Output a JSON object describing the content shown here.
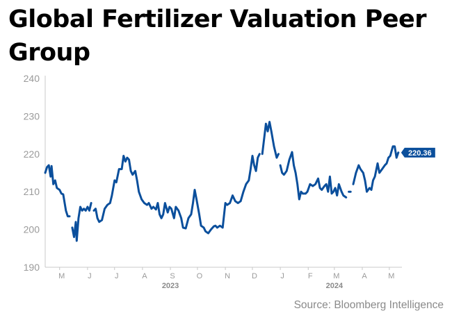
{
  "title": "Global Fertilizer Valuation Peer Group",
  "source": "Source: Bloomberg Intelligence",
  "colors": {
    "line": "#0b4f9c",
    "label_bg": "#0b4f9c",
    "axis_text": "#9a9a9a",
    "year_text": "#8a8a8a",
    "axis_line": "#c8c8c8"
  },
  "chart_data": {
    "type": "line",
    "title": "Global Fertilizer Valuation Peer Group",
    "xlabel": "",
    "ylabel": "",
    "ylim": [
      190,
      240
    ],
    "yticks": [
      190,
      200,
      210,
      220,
      230,
      240
    ],
    "grid": false,
    "x_ticks": [
      {
        "label": "M",
        "date": "2023-05-01"
      },
      {
        "label": "J",
        "date": "2023-06-01"
      },
      {
        "label": "J",
        "date": "2023-07-01"
      },
      {
        "label": "A",
        "date": "2023-08-01"
      },
      {
        "label": "S",
        "date": "2023-09-01"
      },
      {
        "label": "O",
        "date": "2023-10-01"
      },
      {
        "label": "N",
        "date": "2023-11-01"
      },
      {
        "label": "D",
        "date": "2023-12-01"
      },
      {
        "label": "J",
        "date": "2024-01-01"
      },
      {
        "label": "F",
        "date": "2024-02-01"
      },
      {
        "label": "M",
        "date": "2024-03-01"
      },
      {
        "label": "A",
        "date": "2024-04-01"
      },
      {
        "label": "M",
        "date": "2024-05-01"
      }
    ],
    "year_labels": [
      {
        "label": "2023",
        "date": "2023-09-01"
      },
      {
        "label": "2024",
        "date": "2024-03-01"
      }
    ],
    "last_value_label": "220.36",
    "series": [
      {
        "segments": [
          [
            [
              "2023-04-15",
              215
            ],
            [
              "2023-04-17",
              216.5
            ],
            [
              "2023-04-19",
              217
            ],
            [
              "2023-04-21",
              214
            ],
            [
              "2023-04-22",
              216.8
            ],
            [
              "2023-04-24",
              212
            ],
            [
              "2023-04-26",
              213
            ],
            [
              "2023-04-28",
              211
            ],
            [
              "2023-05-01",
              210.5
            ],
            [
              "2023-05-03",
              209.5
            ],
            [
              "2023-05-05",
              209.3
            ],
            [
              "2023-05-08",
              205
            ],
            [
              "2023-05-10",
              203.5
            ],
            [
              "2023-05-12",
              203.5
            ]
          ],
          [
            [
              "2023-05-15",
              200.5
            ],
            [
              "2023-05-17",
              198
            ],
            [
              "2023-05-19",
              202
            ],
            [
              "2023-05-20",
              197
            ],
            [
              "2023-05-22",
              203
            ],
            [
              "2023-05-24",
              206
            ],
            [
              "2023-05-26",
              205
            ],
            [
              "2023-05-28",
              205.5
            ],
            [
              "2023-05-30",
              205
            ],
            [
              "2023-06-01",
              206
            ],
            [
              "2023-06-03",
              205
            ],
            [
              "2023-06-05",
              207
            ]
          ],
          [
            [
              "2023-06-08",
              205
            ],
            [
              "2023-06-10",
              205.5
            ],
            [
              "2023-06-12",
              203
            ],
            [
              "2023-06-14",
              202
            ],
            [
              "2023-06-17",
              202.5
            ],
            [
              "2023-06-20",
              205.5
            ],
            [
              "2023-06-23",
              206.5
            ],
            [
              "2023-06-26",
              207
            ],
            [
              "2023-06-28",
              209
            ],
            [
              "2023-07-01",
              213
            ],
            [
              "2023-07-03",
              212.5
            ],
            [
              "2023-07-06",
              216
            ],
            [
              "2023-07-09",
              216
            ],
            [
              "2023-07-11",
              219.5
            ],
            [
              "2023-07-13",
              218
            ],
            [
              "2023-07-15",
              219
            ],
            [
              "2023-07-17",
              218.5
            ],
            [
              "2023-07-19",
              215.5
            ],
            [
              "2023-07-21",
              214.5
            ],
            [
              "2023-07-24",
              215.5
            ],
            [
              "2023-07-26",
              213
            ],
            [
              "2023-07-28",
              210
            ],
            [
              "2023-07-31",
              208
            ],
            [
              "2023-08-03",
              207
            ],
            [
              "2023-08-06",
              206.5
            ],
            [
              "2023-08-08",
              207
            ],
            [
              "2023-08-11",
              205.5
            ],
            [
              "2023-08-13",
              206
            ],
            [
              "2023-08-16",
              205.3
            ],
            [
              "2023-08-18",
              207
            ],
            [
              "2023-08-20",
              204
            ],
            [
              "2023-08-22",
              203
            ],
            [
              "2023-08-24",
              204
            ],
            [
              "2023-08-26",
              207
            ],
            [
              "2023-08-29",
              204.5
            ],
            [
              "2023-08-31",
              206
            ],
            [
              "2023-09-02",
              205.5
            ],
            [
              "2023-09-05",
              203
            ],
            [
              "2023-09-07",
              206
            ],
            [
              "2023-09-10",
              205
            ],
            [
              "2023-09-13",
              203
            ],
            [
              "2023-09-15",
              200.5
            ],
            [
              "2023-09-18",
              200.3
            ],
            [
              "2023-09-21",
              203
            ],
            [
              "2023-09-24",
              204
            ],
            [
              "2023-09-26",
              207
            ],
            [
              "2023-09-28",
              210.5
            ],
            [
              "2023-09-30",
              208
            ],
            [
              "2023-10-03",
              204
            ],
            [
              "2023-10-05",
              201
            ],
            [
              "2023-10-08",
              200.5
            ],
            [
              "2023-10-10",
              199.5
            ],
            [
              "2023-10-13",
              199
            ],
            [
              "2023-10-16",
              200
            ],
            [
              "2023-10-19",
              200.8
            ],
            [
              "2023-10-21",
              201
            ],
            [
              "2023-10-23",
              200.5
            ],
            [
              "2023-10-26",
              201
            ],
            [
              "2023-10-29",
              200.5
            ],
            [
              "2023-11-01",
              207
            ],
            [
              "2023-11-03",
              206.5
            ],
            [
              "2023-11-06",
              207
            ],
            [
              "2023-11-09",
              209
            ],
            [
              "2023-11-12",
              207.5
            ],
            [
              "2023-11-15",
              207
            ],
            [
              "2023-11-18",
              207.5
            ],
            [
              "2023-11-21",
              210
            ],
            [
              "2023-11-24",
              212
            ],
            [
              "2023-11-27",
              213
            ],
            [
              "2023-11-29",
              216
            ],
            [
              "2023-12-01",
              219.5
            ],
            [
              "2023-12-03",
              217
            ],
            [
              "2023-12-05",
              215.5
            ],
            [
              "2023-12-07",
              219
            ],
            [
              "2023-12-09",
              220
            ]
          ],
          [
            [
              "2023-12-12",
              220
            ],
            [
              "2023-12-14",
              224
            ],
            [
              "2023-12-16",
              228
            ],
            [
              "2023-12-18",
              226
            ],
            [
              "2023-12-20",
              228.5
            ],
            [
              "2023-12-22",
              226
            ],
            [
              "2023-12-25",
              222
            ],
            [
              "2023-12-28",
              219
            ],
            [
              "2023-12-30",
              220
            ]
          ],
          [
            [
              "2024-01-01",
              217
            ],
            [
              "2024-01-03",
              215
            ],
            [
              "2024-01-05",
              214.5
            ],
            [
              "2024-01-08",
              215.5
            ],
            [
              "2024-01-11",
              218.5
            ],
            [
              "2024-01-14",
              220.5
            ],
            [
              "2024-01-16",
              217
            ],
            [
              "2024-01-18",
              215
            ],
            [
              "2024-01-20",
              212
            ],
            [
              "2024-01-22",
              208
            ],
            [
              "2024-01-24",
              210
            ],
            [
              "2024-01-26",
              209.5
            ],
            [
              "2024-01-29",
              209.5
            ],
            [
              "2024-01-31",
              210
            ],
            [
              "2024-02-03",
              212
            ],
            [
              "2024-02-06",
              211.5
            ],
            [
              "2024-02-09",
              212
            ],
            [
              "2024-02-12",
              213.5
            ],
            [
              "2024-02-14",
              211
            ],
            [
              "2024-02-16",
              210.5
            ],
            [
              "2024-02-19",
              211.5
            ],
            [
              "2024-02-21",
              212
            ],
            [
              "2024-02-23",
              210
            ],
            [
              "2024-02-25",
              214
            ],
            [
              "2024-02-27",
              209.5
            ],
            [
              "2024-02-29",
              210
            ],
            [
              "2024-03-02",
              211
            ],
            [
              "2024-03-04",
              209
            ],
            [
              "2024-03-06",
              212
            ],
            [
              "2024-03-09",
              210
            ],
            [
              "2024-03-11",
              209
            ],
            [
              "2024-03-14",
              208.5
            ]
          ],
          [
            [
              "2024-03-17",
              210
            ],
            [
              "2024-03-19",
              210
            ]
          ],
          [
            [
              "2024-03-22",
              212
            ],
            [
              "2024-03-25",
              215
            ],
            [
              "2024-03-28",
              217
            ],
            [
              "2024-03-30",
              216
            ],
            [
              "2024-04-02",
              215
            ],
            [
              "2024-04-04",
              213
            ],
            [
              "2024-04-06",
              210
            ],
            [
              "2024-04-09",
              211
            ],
            [
              "2024-04-11",
              210.5
            ],
            [
              "2024-04-13",
              213
            ],
            [
              "2024-04-15",
              214
            ],
            [
              "2024-04-18",
              217.5
            ],
            [
              "2024-04-20",
              215
            ],
            [
              "2024-04-23",
              216
            ],
            [
              "2024-04-26",
              217
            ],
            [
              "2024-04-28",
              217.5
            ],
            [
              "2024-04-30",
              219
            ],
            [
              "2024-05-02",
              219.5
            ],
            [
              "2024-05-05",
              222
            ],
            [
              "2024-05-07",
              222
            ],
            [
              "2024-05-09",
              219
            ],
            [
              "2024-05-11",
              220.36
            ]
          ]
        ]
      }
    ]
  }
}
